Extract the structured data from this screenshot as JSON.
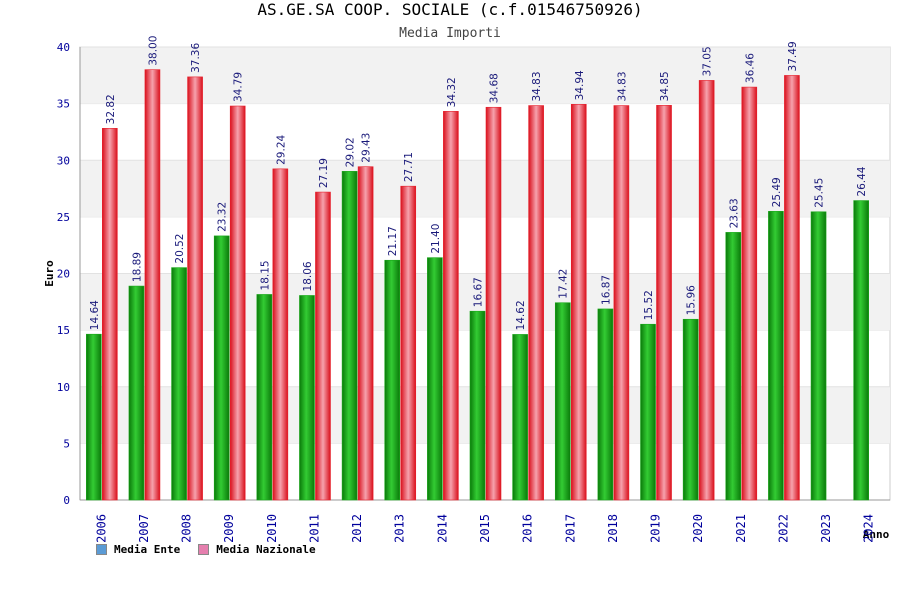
{
  "page": {
    "title": "AS.GE.SA COOP. SOCIALE (c.f.01546750926)",
    "subtitle": "Media Importi"
  },
  "legend": [
    {
      "label": "Media Ente",
      "color": "#5b9bd5"
    },
    {
      "label": "Media Nazionale",
      "color": "#e57fae"
    }
  ],
  "colors": {
    "ente_bar": "#1aa81a",
    "nazionale_bar": "#e8202c",
    "axis_text": "#00009c",
    "value_label": "#1a1a7a",
    "band": "#f2f2f2"
  },
  "chart_data": {
    "type": "bar",
    "title": "AS.GE.SA COOP. SOCIALE (c.f.01546750926)",
    "subtitle": "Media Importi",
    "xlabel": "Anno",
    "ylabel": "Euro",
    "ylim": [
      0,
      40
    ],
    "yticks": [
      0,
      5,
      10,
      15,
      20,
      25,
      30,
      35,
      40
    ],
    "grid": "alternating horizontal bands",
    "legend_position": "bottom-left",
    "categories": [
      "2006",
      "2007",
      "2008",
      "2009",
      "2010",
      "2011",
      "2012",
      "2013",
      "2014",
      "2015",
      "2016",
      "2017",
      "2018",
      "2019",
      "2020",
      "2021",
      "2022",
      "2023",
      "2024"
    ],
    "series": [
      {
        "name": "Media Ente",
        "values": [
          14.64,
          18.89,
          20.52,
          23.32,
          18.15,
          18.06,
          29.02,
          21.17,
          21.4,
          16.67,
          14.62,
          17.42,
          16.87,
          15.52,
          15.96,
          23.63,
          25.49,
          25.45,
          26.44
        ]
      },
      {
        "name": "Media Nazionale",
        "values": [
          32.82,
          38.0,
          37.36,
          34.79,
          29.24,
          27.19,
          29.43,
          27.71,
          34.32,
          34.68,
          34.83,
          34.94,
          34.83,
          34.85,
          37.05,
          36.46,
          37.49,
          null,
          null
        ]
      }
    ]
  }
}
